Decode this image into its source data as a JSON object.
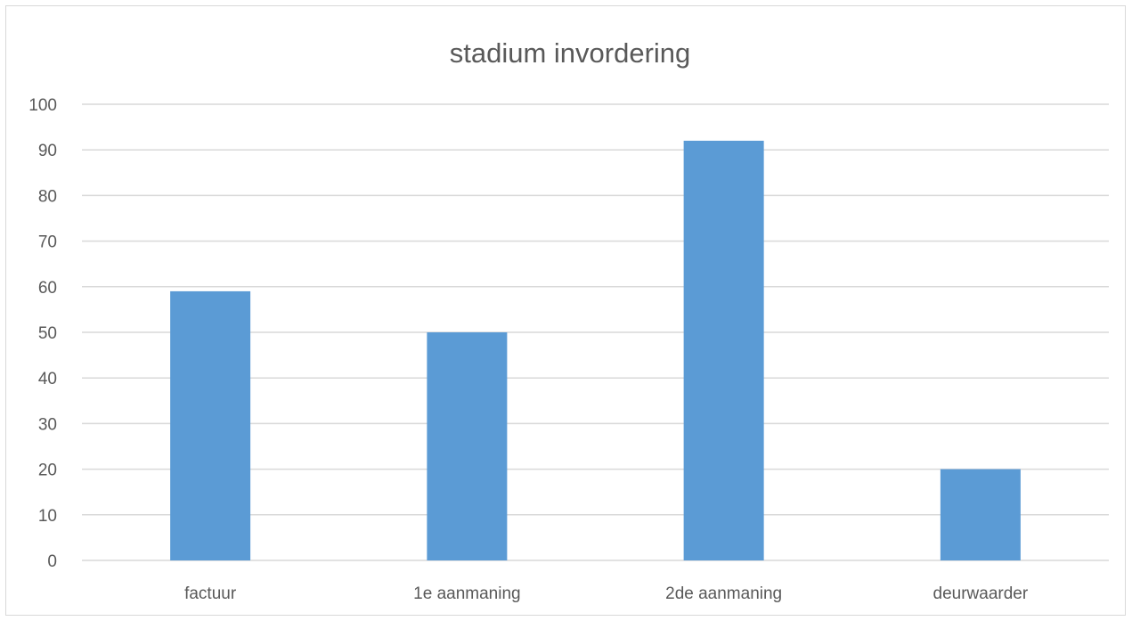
{
  "chart_data": {
    "type": "bar",
    "title": "stadium invordering",
    "categories": [
      "factuur",
      "1e aanmaning",
      "2de aanmaning",
      "deurwaarder"
    ],
    "values": [
      59,
      50,
      92,
      20
    ],
    "ylim": [
      0,
      100
    ],
    "yticks": [
      0,
      10,
      20,
      30,
      40,
      50,
      60,
      70,
      80,
      90,
      100
    ],
    "xlabel": "",
    "ylabel": "",
    "grid": true,
    "legend": "none",
    "bar_color": "#5b9bd5",
    "grid_color": "#d9d9d9",
    "text_color": "#595959"
  }
}
